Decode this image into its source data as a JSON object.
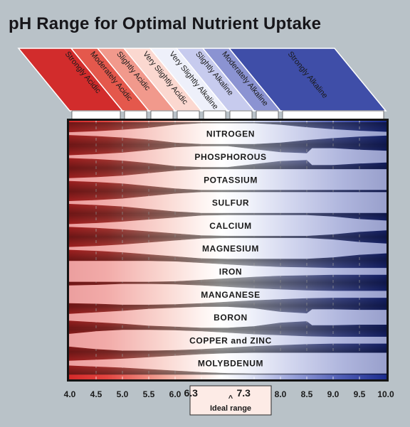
{
  "title": "pH Range for Optimal Nutrient Uptake",
  "colors": {
    "acid": "#d42a2a",
    "neutral": "#ffffff",
    "alkaline": "#1c2c8e",
    "frame": "#141414",
    "background": "#b9c2c8"
  },
  "chart_data": {
    "type": "other",
    "title": "pH Range for Optimal Nutrient Uptake",
    "xlim": [
      4.0,
      10.0
    ],
    "x_ticks": [
      4.0,
      4.5,
      5.0,
      5.5,
      6.0,
      6.3,
      7.3,
      8.0,
      8.5,
      9.0,
      9.5,
      10.0
    ],
    "categories": [
      {
        "label": "Strongly Acidic",
        "range": [
          4.0,
          5.0
        ]
      },
      {
        "label": "Moderately Acidic",
        "range": [
          5.0,
          5.5
        ]
      },
      {
        "label": "Slightly Acidic",
        "range": [
          5.5,
          6.0
        ]
      },
      {
        "label": "Very Slightly Acidic",
        "range": [
          6.0,
          6.5
        ]
      },
      {
        "label": "Very Slightly Alkaline",
        "range": [
          6.5,
          7.0
        ]
      },
      {
        "label": "Slightly Alkaline",
        "range": [
          7.0,
          7.5
        ]
      },
      {
        "label": "Moderately Alkaline",
        "range": [
          7.5,
          8.0
        ]
      },
      {
        "label": "Strongly Alkaline",
        "range": [
          8.0,
          10.0
        ]
      }
    ],
    "ideal_range": {
      "label": "Ideal range",
      "range": [
        6.3,
        7.3
      ]
    },
    "nutrients": [
      {
        "name": "NITROGEN",
        "availability": [
          [
            4.0,
            0.1
          ],
          [
            4.5,
            0.2
          ],
          [
            5.0,
            0.35
          ],
          [
            5.5,
            0.55
          ],
          [
            6.0,
            0.85
          ],
          [
            6.5,
            1
          ],
          [
            7.0,
            1
          ],
          [
            7.5,
            1
          ],
          [
            8.0,
            0.85
          ],
          [
            8.5,
            0.6
          ],
          [
            9.0,
            0.4
          ],
          [
            9.5,
            0.25
          ],
          [
            10.0,
            0.15
          ]
        ]
      },
      {
        "name": "PHOSPHOROUS",
        "availability": [
          [
            4.0,
            0.1
          ],
          [
            4.5,
            0.2
          ],
          [
            5.0,
            0.35
          ],
          [
            5.5,
            0.6
          ],
          [
            6.0,
            0.9
          ],
          [
            6.5,
            1
          ],
          [
            7.0,
            1
          ],
          [
            7.5,
            0.7
          ],
          [
            8.0,
            0.4
          ],
          [
            8.5,
            0.3
          ],
          [
            8.6,
            0.8
          ],
          [
            9.0,
            0.8
          ],
          [
            9.5,
            0.65
          ],
          [
            10.0,
            0.55
          ]
        ]
      },
      {
        "name": "POTASSIUM",
        "availability": [
          [
            4.0,
            0.1
          ],
          [
            4.5,
            0.2
          ],
          [
            5.0,
            0.35
          ],
          [
            5.5,
            0.6
          ],
          [
            6.0,
            0.85
          ],
          [
            6.5,
            1
          ],
          [
            7.0,
            1
          ],
          [
            8.0,
            1
          ],
          [
            9.0,
            1
          ],
          [
            10.0,
            1
          ]
        ]
      },
      {
        "name": "SULFUR",
        "availability": [
          [
            4.0,
            0.1
          ],
          [
            4.5,
            0.2
          ],
          [
            5.0,
            0.35
          ],
          [
            5.5,
            0.6
          ],
          [
            6.0,
            0.85
          ],
          [
            6.5,
            1
          ],
          [
            7.0,
            1
          ],
          [
            8.0,
            1
          ],
          [
            9.0,
            1
          ],
          [
            10.0,
            1
          ]
        ]
      },
      {
        "name": "CALCIUM",
        "availability": [
          [
            4.0,
            0.1
          ],
          [
            4.5,
            0.2
          ],
          [
            5.0,
            0.35
          ],
          [
            5.5,
            0.55
          ],
          [
            6.0,
            0.75
          ],
          [
            6.5,
            0.95
          ],
          [
            7.0,
            1
          ],
          [
            8.0,
            1
          ],
          [
            8.5,
            1
          ],
          [
            9.0,
            0.85
          ],
          [
            9.5,
            0.6
          ],
          [
            10.0,
            0.45
          ]
        ]
      },
      {
        "name": "MAGNESIUM",
        "availability": [
          [
            4.0,
            0.1
          ],
          [
            4.5,
            0.2
          ],
          [
            5.0,
            0.35
          ],
          [
            5.5,
            0.55
          ],
          [
            6.0,
            0.75
          ],
          [
            6.5,
            0.95
          ],
          [
            7.0,
            1
          ],
          [
            8.0,
            1
          ],
          [
            8.5,
            1
          ],
          [
            9.0,
            0.85
          ],
          [
            9.5,
            0.6
          ],
          [
            10.0,
            0.45
          ]
        ]
      },
      {
        "name": "IRON",
        "availability": [
          [
            4.0,
            1
          ],
          [
            5.0,
            1
          ],
          [
            5.5,
            1
          ],
          [
            6.0,
            0.95
          ],
          [
            6.5,
            0.8
          ],
          [
            7.0,
            0.65
          ],
          [
            7.5,
            0.5
          ],
          [
            8.0,
            0.4
          ],
          [
            8.5,
            0.35
          ],
          [
            9.0,
            0.3
          ],
          [
            9.5,
            0.3
          ],
          [
            10.0,
            0.3
          ]
        ]
      },
      {
        "name": "MANGANESE",
        "availability": [
          [
            4.0,
            0.85
          ],
          [
            4.5,
            0.9
          ],
          [
            5.0,
            1
          ],
          [
            5.5,
            1
          ],
          [
            6.0,
            0.95
          ],
          [
            6.5,
            0.85
          ],
          [
            7.0,
            0.7
          ],
          [
            7.5,
            0.55
          ],
          [
            8.0,
            0.45
          ],
          [
            8.5,
            0.35
          ],
          [
            9.0,
            0.3
          ],
          [
            9.5,
            0.3
          ],
          [
            10.0,
            0.3
          ]
        ]
      },
      {
        "name": "BORON",
        "availability": [
          [
            4.0,
            0.3
          ],
          [
            4.5,
            0.45
          ],
          [
            5.0,
            0.6
          ],
          [
            5.5,
            0.8
          ],
          [
            6.0,
            0.9
          ],
          [
            6.5,
            1
          ],
          [
            7.0,
            1
          ],
          [
            7.5,
            0.85
          ],
          [
            8.0,
            0.5
          ],
          [
            8.5,
            0.35
          ],
          [
            8.6,
            0.75
          ],
          [
            9.0,
            0.75
          ],
          [
            9.5,
            0.7
          ],
          [
            10.0,
            0.7
          ]
        ]
      },
      {
        "name": "COPPER and ZINC",
        "availability": [
          [
            4.0,
            0.6
          ],
          [
            4.5,
            0.85
          ],
          [
            5.0,
            1
          ],
          [
            5.5,
            1
          ],
          [
            6.0,
            0.95
          ],
          [
            6.5,
            0.85
          ],
          [
            7.0,
            0.7
          ],
          [
            7.5,
            0.55
          ],
          [
            8.0,
            0.45
          ],
          [
            8.5,
            0.35
          ],
          [
            9.0,
            0.3
          ],
          [
            9.5,
            0.3
          ],
          [
            10.0,
            0.3
          ]
        ]
      },
      {
        "name": "MOLYBDENUM",
        "availability": [
          [
            4.0,
            0.2
          ],
          [
            4.5,
            0.3
          ],
          [
            5.0,
            0.4
          ],
          [
            5.5,
            0.55
          ],
          [
            6.0,
            0.7
          ],
          [
            6.5,
            0.85
          ],
          [
            7.0,
            0.95
          ],
          [
            7.5,
            1
          ],
          [
            8.0,
            1
          ],
          [
            9.0,
            1
          ],
          [
            10.0,
            1
          ]
        ]
      }
    ]
  }
}
